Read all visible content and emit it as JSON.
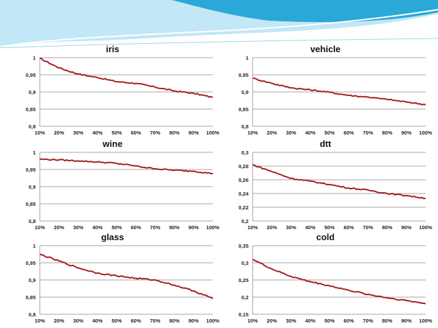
{
  "slide": {
    "accent_colors": {
      "wave_dark": "#2aa8d8",
      "wave_light": "#8fd3ee",
      "series": "#a31f23"
    }
  },
  "chart_data": [
    {
      "type": "line",
      "title": "iris",
      "x": [
        "10%",
        "20%",
        "30%",
        "40%",
        "50%",
        "60%",
        "70%",
        "80%",
        "90%",
        "100%"
      ],
      "yticks": [
        "0,8",
        "0,85",
        "0,9",
        "0,95",
        "1"
      ],
      "ylim": [
        0.8,
        1.0
      ],
      "grid": true,
      "series": [
        {
          "color": "#a31f23",
          "values": [
            0.998,
            0.97,
            0.952,
            0.942,
            0.93,
            0.925,
            0.914,
            0.903,
            0.896,
            0.884
          ]
        }
      ]
    },
    {
      "type": "line",
      "title": "vehicle",
      "x": [
        "10%",
        "20%",
        "30%",
        "40%",
        "50%",
        "60%",
        "70%",
        "80%",
        "90%",
        "100%"
      ],
      "yticks": [
        "0,8",
        "0,85",
        "0,9",
        "0,95",
        "1"
      ],
      "ylim": [
        0.8,
        1.0
      ],
      "grid": true,
      "series": [
        {
          "color": "#a31f23",
          "values": [
            0.94,
            0.925,
            0.912,
            0.906,
            0.899,
            0.89,
            0.885,
            0.878,
            0.871,
            0.863
          ]
        }
      ]
    },
    {
      "type": "line",
      "title": "wine",
      "x": [
        "10%",
        "20%",
        "30%",
        "40%",
        "50%",
        "60%",
        "70%",
        "80%",
        "90%",
        "100%"
      ],
      "yticks": [
        "0,8",
        "0,85",
        "0,9",
        "0,95",
        "1"
      ],
      "ylim": [
        0.8,
        1.0
      ],
      "grid": true,
      "series": [
        {
          "color": "#a31f23",
          "values": [
            0.98,
            0.978,
            0.975,
            0.972,
            0.968,
            0.96,
            0.952,
            0.948,
            0.945,
            0.938
          ]
        }
      ]
    },
    {
      "type": "line",
      "title": "dtt",
      "x": [
        "10%",
        "20%",
        "30%",
        "40%",
        "50%",
        "60%",
        "70%",
        "80%",
        "90%",
        "100%"
      ],
      "yticks": [
        "0,2",
        "0,22",
        "0,24",
        "0,26",
        "0,28",
        "0,3"
      ],
      "ylim": [
        0.2,
        0.3
      ],
      "grid": true,
      "series": [
        {
          "color": "#a31f23",
          "values": [
            0.282,
            0.272,
            0.262,
            0.258,
            0.253,
            0.248,
            0.245,
            0.24,
            0.237,
            0.233
          ]
        }
      ]
    },
    {
      "type": "line",
      "title": "glass",
      "x": [
        "10%",
        "20%",
        "30%",
        "40%",
        "50%",
        "60%",
        "70%",
        "80%",
        "90%",
        "100%"
      ],
      "yticks": [
        "0,8",
        "0,85",
        "0,9",
        "0,95",
        "1"
      ],
      "ylim": [
        0.8,
        1.0
      ],
      "grid": true,
      "series": [
        {
          "color": "#a31f23",
          "values": [
            0.975,
            0.955,
            0.935,
            0.92,
            0.912,
            0.905,
            0.9,
            0.885,
            0.868,
            0.846
          ]
        }
      ]
    },
    {
      "type": "line",
      "title": "cold",
      "x": [
        "10%",
        "20%",
        "30%",
        "40%",
        "50%",
        "60%",
        "70%",
        "80%",
        "90%",
        "100%"
      ],
      "yticks": [
        "0,15",
        "0,2",
        "0,25",
        "0,3",
        "0,35"
      ],
      "ylim": [
        0.15,
        0.35
      ],
      "grid": true,
      "series": [
        {
          "color": "#a31f23",
          "values": [
            0.31,
            0.282,
            0.26,
            0.245,
            0.233,
            0.22,
            0.208,
            0.198,
            0.19,
            0.181
          ]
        }
      ]
    }
  ]
}
